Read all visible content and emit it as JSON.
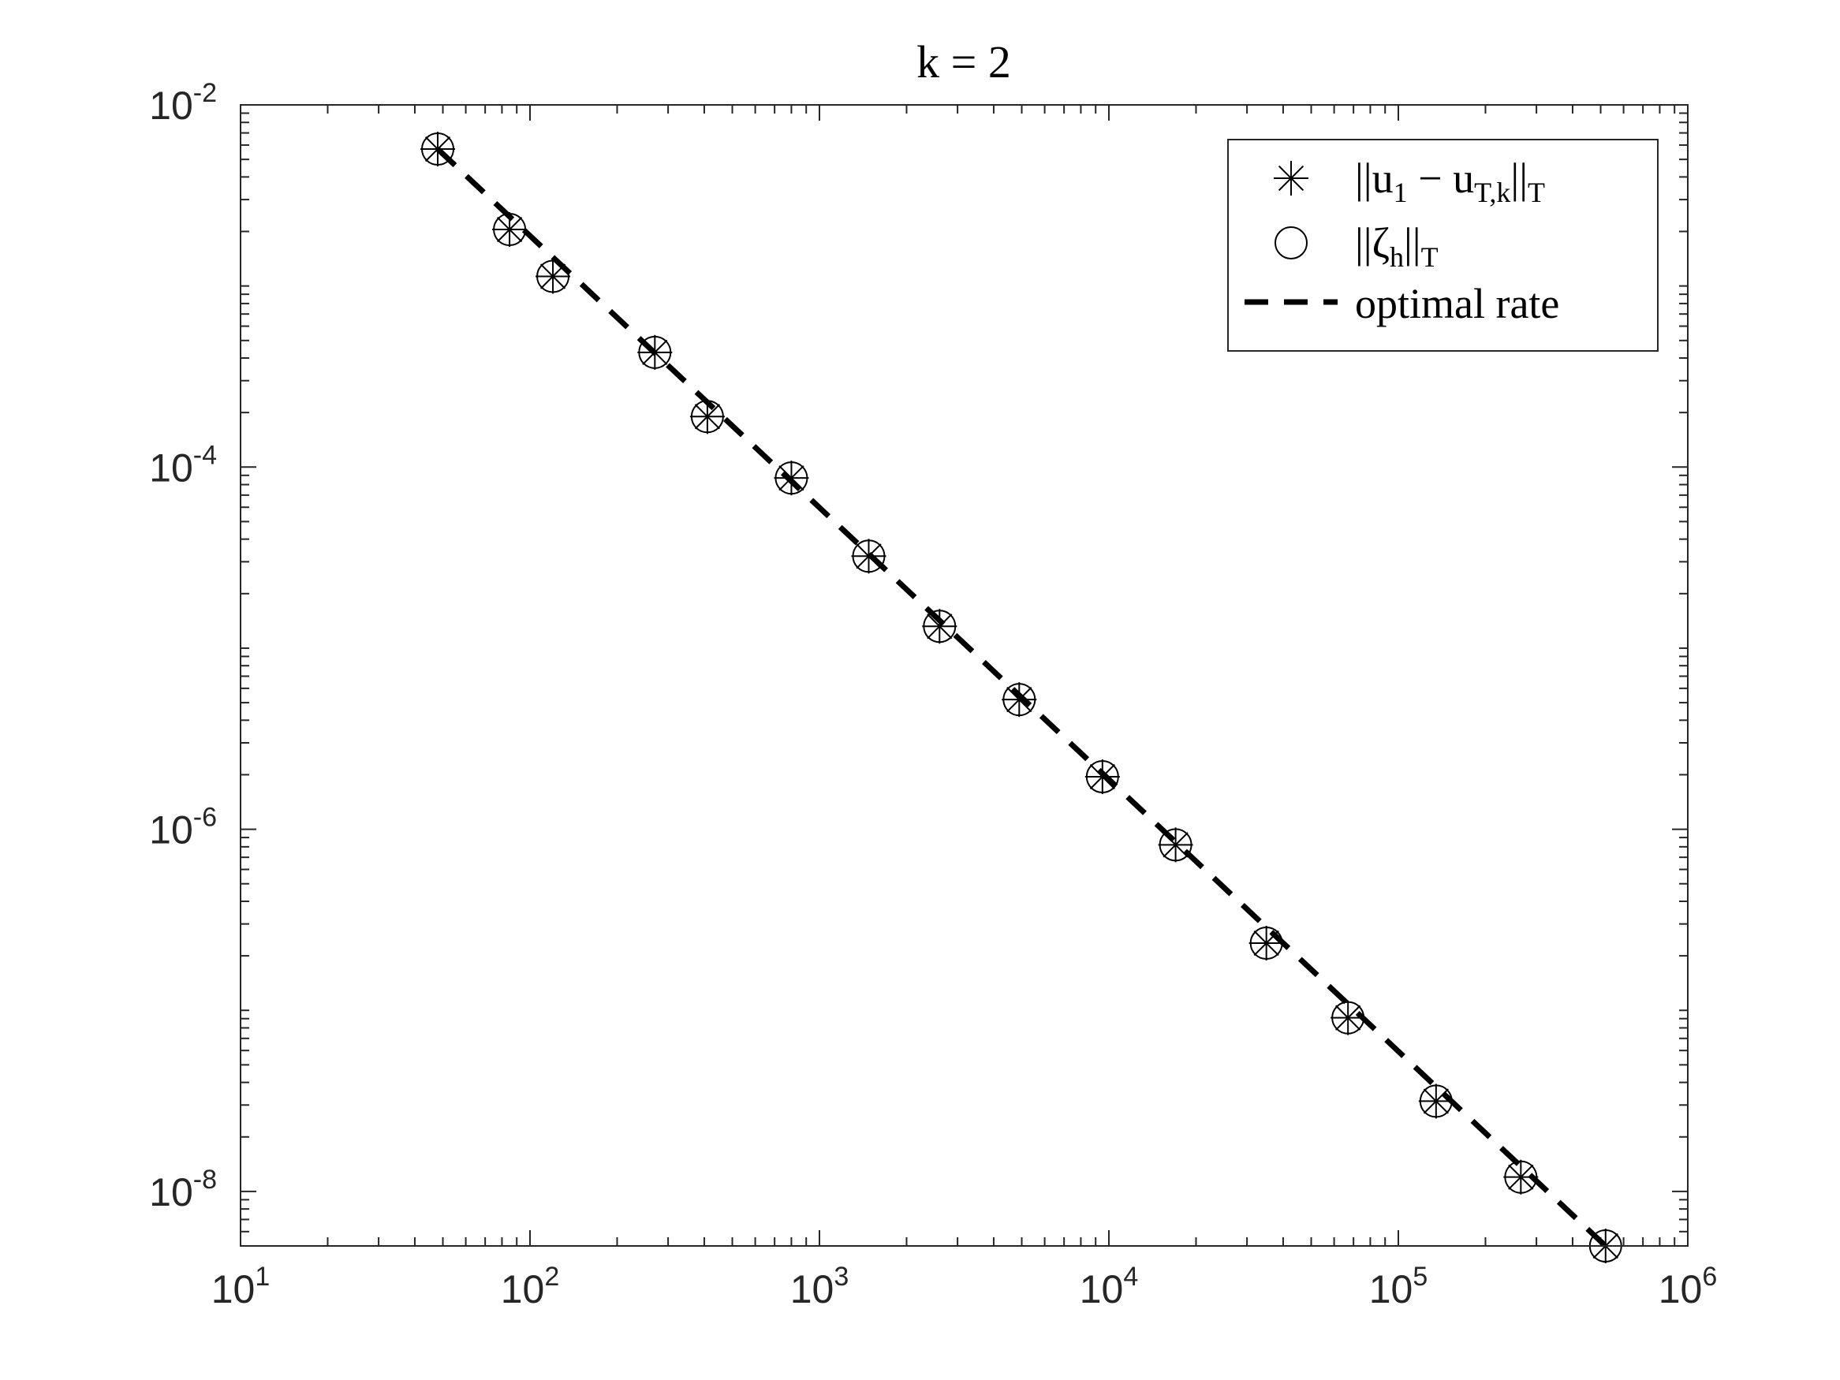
{
  "chart_data": {
    "type": "scatter",
    "title": "k = 2",
    "xlabel": "",
    "ylabel": "",
    "xscale": "log",
    "yscale": "log",
    "xlim": [
      10,
      1000000
    ],
    "ylim": [
      5e-09,
      0.01
    ],
    "x_ticks": [
      {
        "value": 10,
        "base": "10",
        "exp": "1"
      },
      {
        "value": 100,
        "base": "10",
        "exp": "2"
      },
      {
        "value": 1000,
        "base": "10",
        "exp": "3"
      },
      {
        "value": 10000,
        "base": "10",
        "exp": "4"
      },
      {
        "value": 100000,
        "base": "10",
        "exp": "5"
      },
      {
        "value": 1000000,
        "base": "10",
        "exp": "6"
      }
    ],
    "y_ticks": [
      {
        "value": 0.01,
        "base": "10",
        "exp": "-2"
      },
      {
        "value": 0.0001,
        "base": "10",
        "exp": "-4"
      },
      {
        "value": 1e-06,
        "base": "10",
        "exp": "-6"
      },
      {
        "value": 1e-08,
        "base": "10",
        "exp": "-8"
      }
    ],
    "legend_position": "top-right",
    "grid": false,
    "series": [
      {
        "name": "||u1 − uT,k||T",
        "marker": "asterisk",
        "x": [
          48,
          85,
          120,
          270,
          410,
          800,
          1480,
          2600,
          4900,
          9500,
          17000,
          35000,
          67000,
          135000,
          265000,
          520000
        ],
        "y": [
          0.0057,
          0.00205,
          0.00113,
          0.00043,
          0.00019,
          8.7e-05,
          3.22e-05,
          1.32e-05,
          5.2e-06,
          1.95e-06,
          8.2e-07,
          2.35e-07,
          9.1e-08,
          3.15e-08,
          1.2e-08,
          5e-09
        ]
      },
      {
        "name": "||ζh||T",
        "marker": "circle",
        "x": [
          48,
          85,
          120,
          270,
          410,
          800,
          1480,
          2600,
          4900,
          9500,
          17000,
          35000,
          67000,
          135000,
          265000,
          520000
        ],
        "y": [
          0.0057,
          0.00205,
          0.00113,
          0.00043,
          0.00019,
          8.7e-05,
          3.22e-05,
          1.32e-05,
          5.2e-06,
          1.95e-06,
          8.2e-07,
          2.35e-07,
          9.1e-08,
          3.15e-08,
          1.2e-08,
          5e-09
        ]
      },
      {
        "name": "optimal rate",
        "line_style": "dashed",
        "x": [
          48,
          520000
        ],
        "y": [
          0.0057,
          5e-09
        ]
      }
    ],
    "legend": {
      "entries": [
        {
          "pre": "||u",
          "sub1": "1",
          "mid": " − u",
          "sub2": "T,k",
          "post": "||",
          "sub3": "T"
        },
        {
          "pre": "||ζ",
          "sub1": "h",
          "mid": "||",
          "sub2": "T",
          "post": "",
          "sub3": ""
        },
        {
          "pre": "optimal rate",
          "sub1": "",
          "mid": "",
          "sub2": "",
          "post": "",
          "sub3": ""
        }
      ]
    }
  }
}
